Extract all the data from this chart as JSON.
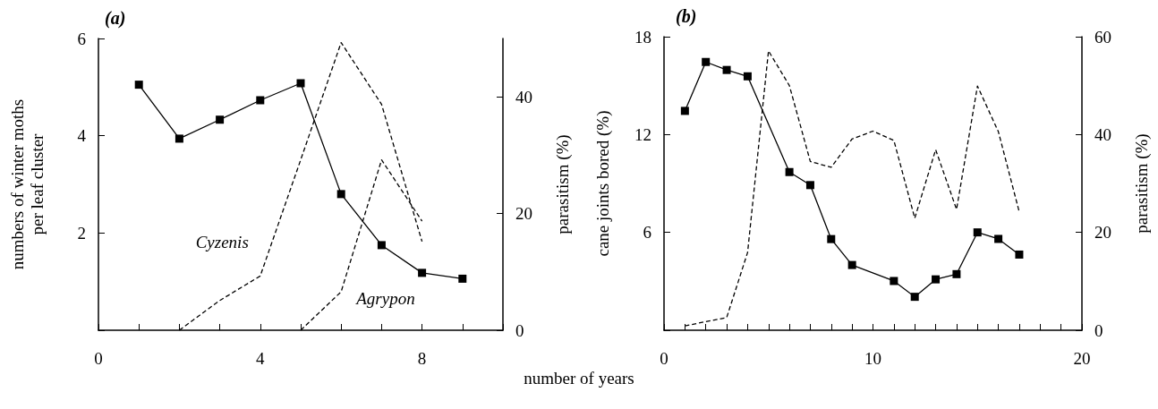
{
  "chart_data": [
    {
      "type": "line",
      "title": "(a)",
      "xlabel": "number of years",
      "ylabel": "numbers of winter moths per leaf cluster",
      "y2label": "parasitism (%)",
      "xlim": [
        0,
        10
      ],
      "xticks": [
        0,
        {
          "value": 1,
          "label": null
        },
        {
          "value": 2,
          "label": null
        },
        {
          "value": 3,
          "label": null
        },
        4,
        {
          "value": 5,
          "label": null
        },
        {
          "value": 6,
          "label": null
        },
        {
          "value": 7,
          "label": null
        },
        8,
        {
          "value": 9,
          "label": null
        },
        {
          "value": 10,
          "label": null
        }
      ],
      "ylim": [
        0,
        6
      ],
      "yticks": [
        {
          "value": 0,
          "label": null
        },
        2,
        4,
        6
      ],
      "y2lim": [
        0,
        50
      ],
      "y2ticks": [
        0,
        20,
        40
      ],
      "grid": false,
      "series": [
        {
          "color": "#000000",
          "marker": "square",
          "line_style": "solid",
          "x": [
            1,
            2,
            3,
            4,
            5,
            6,
            7,
            8,
            9
          ],
          "values": [
            5.05,
            3.94,
            4.33,
            4.73,
            5.08,
            2.8,
            1.75,
            1.18,
            1.06
          ]
        },
        {
          "name": "Cyzenis",
          "color": "#000000",
          "marker": "none",
          "line_style": "dashed",
          "axis": "y2",
          "x": [
            2,
            3,
            4,
            5,
            6,
            7,
            8
          ],
          "values": [
            0,
            5.1,
            9.3,
            29.2,
            49.3,
            38.7,
            15.2
          ]
        },
        {
          "name": "Agrypon",
          "color": "#000000",
          "marker": "none",
          "line_style": "dashed",
          "axis": "y2",
          "x": [
            5,
            6,
            7,
            8
          ],
          "values": [
            0,
            6.6,
            29.2,
            18.7
          ]
        }
      ]
    },
    {
      "type": "line",
      "title": "(b)",
      "ylabel": "cane joints bored (%)",
      "y2label": "parasitism (%)",
      "xlim": [
        0,
        20
      ],
      "xticks": [
        0,
        {
          "value": 1,
          "label": null
        },
        {
          "value": 2,
          "label": null
        },
        {
          "value": 3,
          "label": null
        },
        {
          "value": 4,
          "label": null
        },
        {
          "value": 5,
          "label": null
        },
        {
          "value": 6,
          "label": null
        },
        {
          "value": 7,
          "label": null
        },
        {
          "value": 8,
          "label": null
        },
        {
          "value": 9,
          "label": null
        },
        10,
        {
          "value": 11,
          "label": null
        },
        {
          "value": 12,
          "label": null
        },
        {
          "value": 13,
          "label": null
        },
        {
          "value": 14,
          "label": null
        },
        {
          "value": 15,
          "label": null
        },
        {
          "value": 16,
          "label": null
        },
        {
          "value": 17,
          "label": null
        },
        {
          "value": 18,
          "label": null
        },
        {
          "value": 19,
          "label": null
        },
        20
      ],
      "ylim": [
        0,
        18
      ],
      "yticks": [
        {
          "value": 0,
          "label": null
        },
        6,
        12,
        18
      ],
      "y2lim": [
        0,
        60
      ],
      "y2ticks": [
        0,
        20,
        40,
        60
      ],
      "grid": false,
      "series": [
        {
          "color": "#000000",
          "marker": "square",
          "line_style": "solid",
          "x": [
            1,
            2,
            3,
            4,
            6,
            7,
            8,
            9,
            11,
            12,
            13,
            14,
            15,
            16,
            17
          ],
          "values": [
            13.45,
            16.45,
            15.96,
            15.57,
            9.7,
            8.9,
            5.59,
            4.0,
            3.02,
            2.05,
            3.12,
            3.44,
            6.0,
            5.6,
            4.64
          ]
        },
        {
          "color": "#000000",
          "marker": "none",
          "line_style": "dashed",
          "axis": "y2",
          "x": [
            1,
            3,
            4,
            5,
            6,
            7,
            8,
            9,
            10,
            11,
            12,
            13,
            14,
            15,
            16,
            17
          ],
          "values": [
            0.9,
            2.6,
            15.9,
            57.1,
            50,
            34.5,
            33.3,
            39.1,
            40.7,
            38.8,
            22.9,
            36.9,
            24.7,
            49.9,
            40.6,
            24.2
          ]
        }
      ]
    }
  ]
}
